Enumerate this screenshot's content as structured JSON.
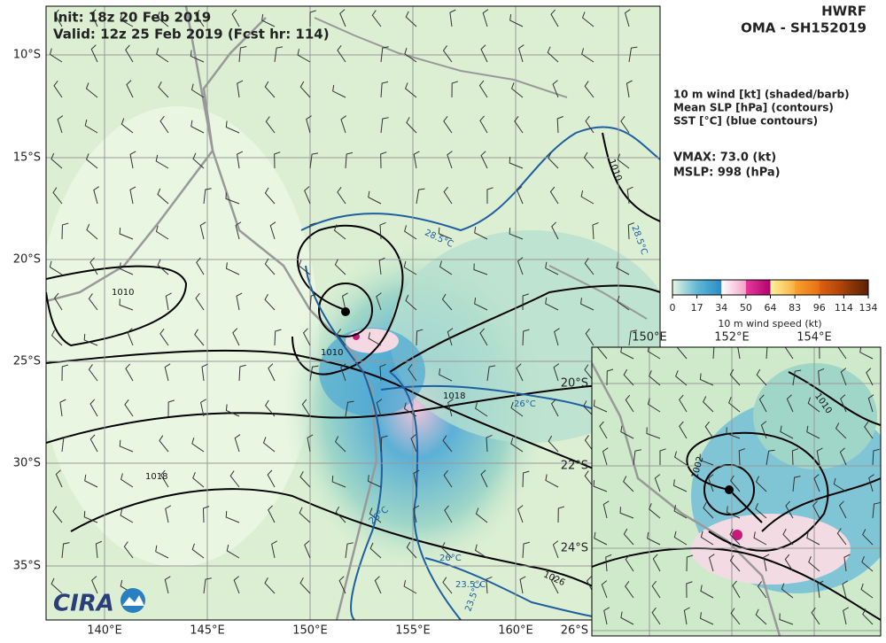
{
  "header": {
    "init": "Init:   18z 20 Feb 2019",
    "valid": "Valid: 12z 25 Feb 2019 (Fcst hr: 114)",
    "model": "HWRF",
    "storm": "OMA - SH152019"
  },
  "legend_text": [
    "10 m wind [kt] (shaded/barb)",
    "Mean SLP [hPa] (contours)",
    "SST [°C] (blue contours)"
  ],
  "stats": [
    "VMAX:  73.0 (kt)",
    "MSLP:  998 (hPa)"
  ],
  "colorbar": {
    "ticks": [
      0,
      17,
      34,
      50,
      64,
      83,
      96,
      114,
      134
    ],
    "label": "10 m wind speed (kt)"
  },
  "map": {
    "lat_labels": [
      "10°S",
      "15°S",
      "20°S",
      "25°S",
      "30°S",
      "35°S"
    ],
    "lon_labels": [
      "140°E",
      "145°E",
      "150°E",
      "155°E",
      "160°E"
    ],
    "contour_labels": [
      "1010",
      "1010",
      "1010",
      "1018",
      "1018",
      "1026",
      "28.5°C",
      "28.5°C",
      "26°C",
      "26°C",
      "26°C",
      "23.5°C",
      "23.5°C"
    ]
  },
  "inset": {
    "lon_labels": [
      "150°E",
      "152°E",
      "154°E"
    ],
    "lat_labels": [
      "20°S",
      "22°S",
      "24°S",
      "26°S"
    ],
    "contour_labels": [
      "1010",
      "1002"
    ]
  },
  "logo": "CIRA"
}
